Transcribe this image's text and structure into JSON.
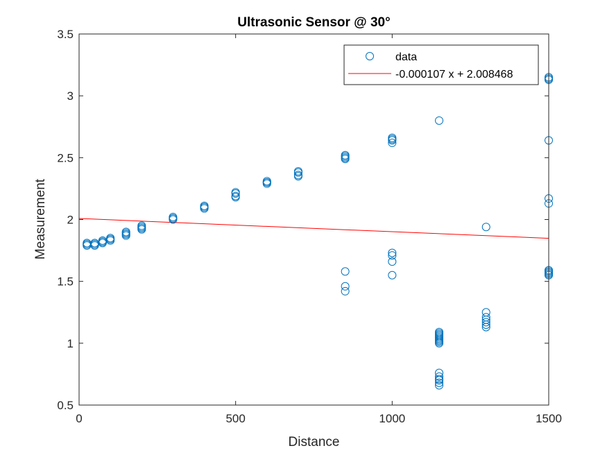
{
  "chart_data": {
    "type": "scatter",
    "title": "Ultrasonic Sensor @ 30°",
    "xlabel": "Distance",
    "ylabel": "Measurement",
    "xlim": [
      0,
      1500
    ],
    "ylim": [
      0.5,
      3.5
    ],
    "xticks": [
      0,
      500,
      1000,
      1500
    ],
    "yticks": [
      0.5,
      1,
      1.5,
      2,
      2.5,
      3,
      3.5
    ],
    "xtick_labels": [
      "0",
      "500",
      "1000",
      "1500"
    ],
    "ytick_labels": [
      "0.5",
      "1",
      "1.5",
      "2",
      "2.5",
      "3",
      "3.5"
    ],
    "grid": false,
    "legend_position": "top-right",
    "series": [
      {
        "name": "data",
        "kind": "markers",
        "marker": "circle",
        "color": "#0072BD",
        "points": [
          [
            25,
            1.79
          ],
          [
            25,
            1.8
          ],
          [
            25,
            1.81
          ],
          [
            25,
            1.8
          ],
          [
            50,
            1.79
          ],
          [
            50,
            1.8
          ],
          [
            50,
            1.81
          ],
          [
            50,
            1.8
          ],
          [
            75,
            1.81
          ],
          [
            75,
            1.82
          ],
          [
            75,
            1.83
          ],
          [
            75,
            1.82
          ],
          [
            100,
            1.83
          ],
          [
            100,
            1.84
          ],
          [
            100,
            1.85
          ],
          [
            100,
            1.84
          ],
          [
            150,
            1.87
          ],
          [
            150,
            1.88
          ],
          [
            150,
            1.9
          ],
          [
            150,
            1.89
          ],
          [
            200,
            1.92
          ],
          [
            200,
            1.93
          ],
          [
            200,
            1.95
          ],
          [
            200,
            1.94
          ],
          [
            300,
            2.0
          ],
          [
            300,
            2.01
          ],
          [
            300,
            2.02
          ],
          [
            300,
            2.01
          ],
          [
            400,
            2.09
          ],
          [
            400,
            2.1
          ],
          [
            400,
            2.11
          ],
          [
            400,
            2.1
          ],
          [
            500,
            2.18
          ],
          [
            500,
            2.19
          ],
          [
            500,
            2.21
          ],
          [
            500,
            2.22
          ],
          [
            600,
            2.29
          ],
          [
            600,
            2.3
          ],
          [
            600,
            2.31
          ],
          [
            600,
            2.3
          ],
          [
            700,
            2.35
          ],
          [
            700,
            2.36
          ],
          [
            700,
            2.38
          ],
          [
            700,
            2.39
          ],
          [
            850,
            2.49
          ],
          [
            850,
            2.5
          ],
          [
            850,
            2.51
          ],
          [
            850,
            2.52
          ],
          [
            850,
            1.58
          ],
          [
            850,
            1.46
          ],
          [
            850,
            1.42
          ],
          [
            1000,
            2.62
          ],
          [
            1000,
            2.64
          ],
          [
            1000,
            2.65
          ],
          [
            1000,
            2.66
          ],
          [
            1000,
            1.73
          ],
          [
            1000,
            1.71
          ],
          [
            1000,
            1.66
          ],
          [
            1000,
            1.55
          ],
          [
            1150,
            2.8
          ],
          [
            1150,
            1.09
          ],
          [
            1150,
            1.08
          ],
          [
            1150,
            1.07
          ],
          [
            1150,
            1.06
          ],
          [
            1150,
            1.05
          ],
          [
            1150,
            1.04
          ],
          [
            1150,
            1.03
          ],
          [
            1150,
            1.02
          ],
          [
            1150,
            1.01
          ],
          [
            1150,
            1.0
          ],
          [
            1150,
            0.76
          ],
          [
            1150,
            0.73
          ],
          [
            1150,
            0.71
          ],
          [
            1150,
            0.7
          ],
          [
            1150,
            0.68
          ],
          [
            1150,
            0.66
          ],
          [
            1300,
            1.94
          ],
          [
            1300,
            1.25
          ],
          [
            1300,
            1.21
          ],
          [
            1300,
            1.19
          ],
          [
            1300,
            1.17
          ],
          [
            1300,
            1.15
          ],
          [
            1300,
            1.13
          ],
          [
            1500,
            3.15
          ],
          [
            1500,
            3.14
          ],
          [
            1500,
            3.13
          ],
          [
            1500,
            2.64
          ],
          [
            1500,
            2.17
          ],
          [
            1500,
            2.13
          ],
          [
            1500,
            1.59
          ],
          [
            1500,
            1.58
          ],
          [
            1500,
            1.57
          ],
          [
            1500,
            1.56
          ],
          [
            1500,
            1.55
          ]
        ]
      },
      {
        "name": "-0.000107 x + 2.008468",
        "kind": "line",
        "color": "#FF0000",
        "slope": -0.000107,
        "intercept": 2.008468,
        "points": [
          [
            0,
            2.008468
          ],
          [
            1500,
            1.847968
          ]
        ]
      }
    ]
  }
}
